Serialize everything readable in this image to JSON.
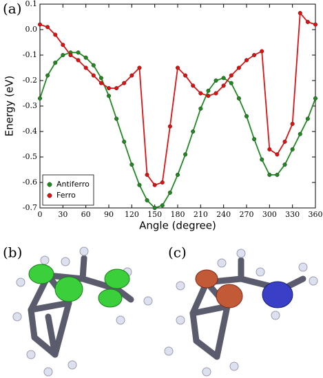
{
  "panel_labels": [
    "(a)",
    "(b)",
    "(c)"
  ],
  "chart_data": {
    "type": "line",
    "xlabel": "Angle (degree)",
    "ylabel": "Energy (eV)",
    "x": [
      0,
      10,
      20,
      30,
      40,
      50,
      60,
      70,
      80,
      90,
      100,
      110,
      120,
      130,
      140,
      150,
      160,
      170,
      180,
      190,
      200,
      210,
      220,
      230,
      240,
      250,
      260,
      270,
      280,
      290,
      300,
      310,
      320,
      330,
      340,
      350,
      360
    ],
    "series": [
      {
        "name": "Antiferro",
        "color": "#1e8a1e",
        "values": [
          -0.27,
          -0.18,
          -0.13,
          -0.1,
          -0.09,
          -0.09,
          -0.11,
          -0.14,
          -0.19,
          -0.26,
          -0.35,
          -0.44,
          -0.53,
          -0.61,
          -0.67,
          -0.7,
          -0.69,
          -0.64,
          -0.57,
          -0.49,
          -0.4,
          -0.31,
          -0.24,
          -0.2,
          -0.19,
          -0.21,
          -0.27,
          -0.34,
          -0.43,
          -0.51,
          -0.57,
          -0.57,
          -0.53,
          -0.47,
          -0.41,
          -0.35,
          -0.27
        ]
      },
      {
        "name": "Ferro",
        "color": "#e01010",
        "values": [
          0.02,
          0.01,
          -0.02,
          -0.06,
          -0.1,
          -0.12,
          -0.15,
          -0.18,
          -0.21,
          -0.23,
          -0.23,
          -0.21,
          -0.18,
          -0.15,
          -0.57,
          -0.61,
          -0.6,
          -0.38,
          -0.15,
          -0.18,
          -0.22,
          -0.25,
          -0.26,
          -0.25,
          -0.22,
          -0.18,
          -0.15,
          -0.12,
          -0.1,
          -0.085,
          -0.47,
          -0.49,
          -0.44,
          -0.37,
          0.065,
          0.03,
          0.02
        ]
      }
    ],
    "xlim": [
      0,
      360
    ],
    "xticks": [
      0,
      30,
      60,
      90,
      120,
      150,
      180,
      210,
      240,
      270,
      300,
      330,
      360
    ],
    "ylim": [
      -0.7,
      0.1
    ],
    "yticks": [
      0.1,
      {
        "value": 0,
        "label": "0.0"
      },
      -0.1,
      -0.2,
      -0.3,
      -0.4,
      -0.5,
      -0.6,
      -0.7
    ],
    "legend": "lower left"
  }
}
